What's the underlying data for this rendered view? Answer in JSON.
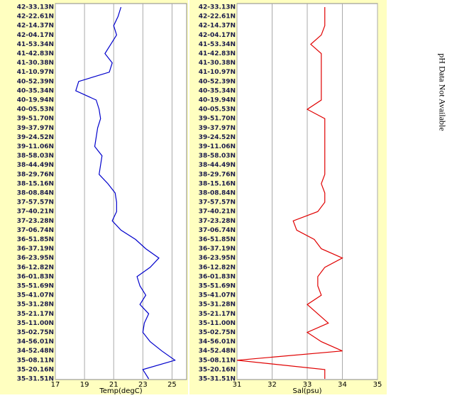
{
  "chart_data": [
    {
      "type": "line",
      "orientation": "vertical-profile",
      "xlabel": "Temp(degC)",
      "categories": [
        "42-33.13N",
        "42-22.61N",
        "42-14.37N",
        "42-04.17N",
        "41-53.34N",
        "41-42.83N",
        "41-30.38N",
        "41-10.97N",
        "40-52.39N",
        "40-35.34N",
        "40-19.94N",
        "40-05.53N",
        "39-51.70N",
        "39-37.97N",
        "39-24.52N",
        "39-11.06N",
        "38-58.03N",
        "38-44.49N",
        "38-29.76N",
        "38-15.16N",
        "38-08.84N",
        "37-57.57N",
        "37-40.21N",
        "37-23.28N",
        "37-06.74N",
        "36-51.85N",
        "36-37.19N",
        "36-23.95N",
        "36-12.82N",
        "36-01.83N",
        "35-51.69N",
        "35-41.07N",
        "35-31.28N",
        "35-21.17N",
        "35-11.00N",
        "35-02.75N",
        "34-56.01N",
        "34-52.48N",
        "35-08.11N",
        "35-20.16N",
        "35-31.51N"
      ],
      "series": [
        {
          "color": "#0000cc",
          "values": [
            21.5,
            21.3,
            21.0,
            21.2,
            20.8,
            20.4,
            20.9,
            20.7,
            18.6,
            18.4,
            19.8,
            20.0,
            20.1,
            19.9,
            19.8,
            19.7,
            20.2,
            20.1,
            20.0,
            20.6,
            21.1,
            21.2,
            21.2,
            20.9,
            21.5,
            22.5,
            23.2,
            24.1,
            23.5,
            22.6,
            22.8,
            23.2,
            22.8,
            23.4,
            23.1,
            23.0,
            23.5,
            24.3,
            25.2,
            23.0,
            23.4
          ]
        }
      ],
      "xlim": [
        17,
        26
      ],
      "xticks": [
        17,
        19,
        21,
        23,
        25
      ],
      "grid": true
    },
    {
      "type": "line",
      "orientation": "vertical-profile",
      "xlabel": "Sal(psu)",
      "categories": [
        "42-33.13N",
        "42-22.61N",
        "42-14.37N",
        "42-04.17N",
        "41-53.34N",
        "41-42.83N",
        "41-30.38N",
        "41-10.97N",
        "40-52.39N",
        "40-35.34N",
        "40-19.94N",
        "40-05.53N",
        "39-51.70N",
        "39-37.97N",
        "39-24.52N",
        "39-11.06N",
        "38-58.03N",
        "38-44.49N",
        "38-29.76N",
        "38-15.16N",
        "38-08.84N",
        "37-57.57N",
        "37-40.21N",
        "37-23.28N",
        "37-06.74N",
        "36-51.85N",
        "36-37.19N",
        "36-23.95N",
        "36-12.82N",
        "36-01.83N",
        "35-51.69N",
        "35-41.07N",
        "35-31.28N",
        "35-21.17N",
        "35-11.00N",
        "35-02.75N",
        "34-56.01N",
        "34-52.48N",
        "35-08.11N",
        "35-20.16N",
        "35-31.51N"
      ],
      "series": [
        {
          "color": "#e00000",
          "values": [
            33.5,
            33.5,
            33.5,
            33.4,
            33.1,
            33.4,
            33.4,
            33.4,
            33.4,
            33.4,
            33.4,
            33.0,
            33.5,
            33.5,
            33.5,
            33.5,
            33.5,
            33.5,
            33.5,
            33.4,
            33.5,
            33.5,
            33.3,
            32.6,
            32.7,
            33.2,
            33.4,
            34.0,
            33.5,
            33.3,
            33.3,
            33.4,
            33.0,
            33.3,
            33.6,
            33.0,
            33.4,
            34.0,
            31.0,
            33.5,
            33.5
          ]
        }
      ],
      "xlim": [
        31,
        35
      ],
      "xticks": [
        31,
        32,
        33,
        34,
        35
      ],
      "grid": true
    }
  ],
  "annotation": "pH Data Not Available"
}
